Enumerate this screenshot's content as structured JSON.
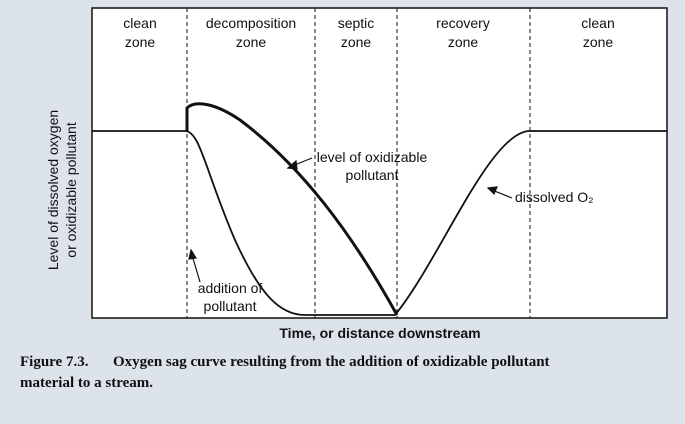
{
  "zones": [
    {
      "lines": [
        "clean",
        "zone"
      ]
    },
    {
      "lines": [
        "decomposition",
        "zone"
      ]
    },
    {
      "lines": [
        "septic",
        "zone"
      ]
    },
    {
      "lines": [
        "recovery",
        "zone"
      ]
    },
    {
      "lines": [
        "clean",
        "zone"
      ]
    }
  ],
  "y_axis_label": [
    "Level of dissolved oxygen",
    "or oxidizable pollutant"
  ],
  "x_axis_label": "Time, or distance downstream",
  "annotations": {
    "pollutant_curve": [
      "level of oxidizable",
      "pollutant"
    ],
    "oxygen_curve": "dissolved O₂",
    "addition": [
      "addition of",
      "pollutant"
    ]
  },
  "caption": {
    "label": "Figure 7.3.",
    "lines": [
      "Oxygen sag curve resulting from the addition of oxidizable pollutant",
      "material to a stream."
    ]
  }
}
